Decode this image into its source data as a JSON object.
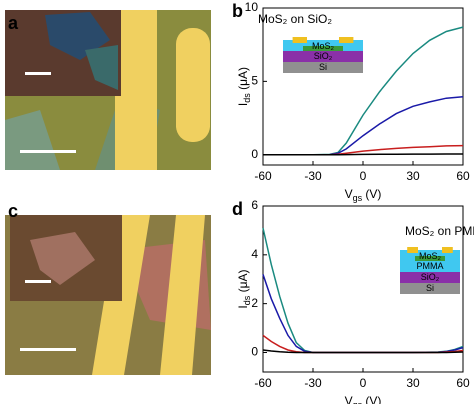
{
  "panel_labels": [
    "a",
    "b",
    "c",
    "d"
  ],
  "chart_data": [
    {
      "type": "line",
      "title": "MoS₂ on SiO₂",
      "layers": [
        "MoS₂",
        "SiO₂",
        "Si"
      ],
      "x_label": {
        "main": "V",
        "sub": "gs",
        "unit": " (V)"
      },
      "y_label": {
        "main": "I",
        "sub": "ds",
        "unit": " (μA)"
      },
      "x": [
        -60,
        -45,
        -30,
        -20,
        -15,
        -10,
        0,
        10,
        20,
        30,
        40,
        50,
        60
      ],
      "xlim": [
        -60,
        60
      ],
      "xticks": [
        -60,
        -30,
        0,
        30,
        60
      ],
      "ylim": [
        -0.7,
        10
      ],
      "yticks": [
        0,
        5,
        10
      ],
      "series": [
        {
          "color": "#1a8a80",
          "values": [
            0,
            0,
            0,
            0.02,
            0.15,
            0.8,
            2.7,
            4.3,
            5.7,
            6.9,
            7.8,
            8.4,
            8.7
          ]
        },
        {
          "color": "#1a1aa8",
          "values": [
            0,
            0,
            0,
            0.01,
            0.1,
            0.4,
            1.3,
            2.1,
            2.8,
            3.3,
            3.6,
            3.85,
            3.95
          ]
        },
        {
          "color": "#c81e1e",
          "values": [
            0,
            0,
            0,
            0,
            0.03,
            0.1,
            0.25,
            0.35,
            0.43,
            0.5,
            0.55,
            0.6,
            0.62
          ]
        },
        {
          "color": "#000000",
          "values": [
            0,
            0,
            0,
            0,
            0,
            0.01,
            0.02,
            0.03,
            0.03,
            0.04,
            0.04,
            0.05,
            0.05
          ]
        }
      ]
    },
    {
      "type": "line",
      "title": "MoS₂ on PMMA",
      "layers": [
        "MoS₂",
        "PMMA",
        "SiO₂",
        "Si"
      ],
      "x_label": {
        "main": "V",
        "sub": "gs",
        "unit": " (V)"
      },
      "y_label": {
        "main": "I",
        "sub": "ds",
        "unit": " (μA)"
      },
      "x": [
        -60,
        -55,
        -50,
        -45,
        -40,
        -35,
        -30,
        0,
        30,
        45,
        50,
        55,
        60
      ],
      "xlim": [
        -60,
        60
      ],
      "xticks": [
        -60,
        -30,
        0,
        30,
        60
      ],
      "ylim": [
        -0.8,
        6
      ],
      "yticks": [
        0,
        2,
        4,
        6
      ],
      "series": [
        {
          "color": "#1a8a80",
          "values": [
            5.1,
            3.6,
            2.3,
            1.2,
            0.4,
            0.08,
            0,
            0,
            0,
            0.02,
            0.05,
            0.12,
            0.25
          ]
        },
        {
          "color": "#1a1aa8",
          "values": [
            3.2,
            2.2,
            1.4,
            0.7,
            0.25,
            0.05,
            0,
            0,
            0,
            0.01,
            0.04,
            0.1,
            0.2
          ]
        },
        {
          "color": "#c81e1e",
          "values": [
            0.7,
            0.45,
            0.25,
            0.1,
            0.03,
            0,
            0,
            0,
            0,
            0,
            0.02,
            0.04,
            0.08
          ]
        },
        {
          "color": "#000000",
          "values": [
            0.1,
            0.06,
            0.03,
            0.01,
            0,
            0,
            0,
            0,
            0,
            0,
            0,
            0.01,
            0.02
          ]
        }
      ]
    }
  ]
}
